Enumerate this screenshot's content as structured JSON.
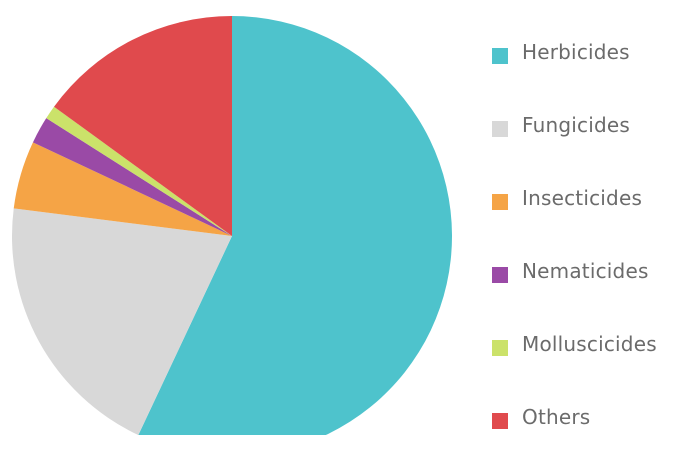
{
  "chart_data": {
    "type": "pie",
    "title": "",
    "slices": [
      {
        "label": "Herbicides",
        "value": 57,
        "color": "#4ec3cc"
      },
      {
        "label": "Fungicides",
        "value": 20,
        "color": "#d8d8d8"
      },
      {
        "label": "Insecticides",
        "value": 5,
        "color": "#f5a446"
      },
      {
        "label": "Nematicides",
        "value": 2,
        "color": "#9a4aa6"
      },
      {
        "label": "Molluscicides",
        "value": 1,
        "color": "#cbe26a"
      },
      {
        "label": "Others",
        "value": 15,
        "color": "#e04a4d"
      }
    ],
    "legend_position": "right"
  }
}
